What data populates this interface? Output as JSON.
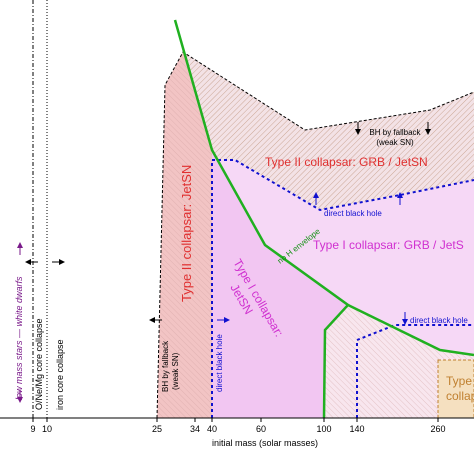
{
  "x_axis": {
    "label": "initial mass (solar masses)",
    "ticks": [
      "9",
      "10",
      "25",
      "34",
      "40",
      "60",
      "100",
      "140",
      "260"
    ]
  },
  "labels": {
    "white_dwarfs": "low mass stars — white dwarfs",
    "onemg": "O/Ne/Mg core collapse",
    "iron": "iron core collapse",
    "fallback_left": [
      "BH by fallback",
      "(weak SN)"
    ],
    "type2_jetsn": "Type II collapsar: JetSN",
    "dbh_left": "direct black hole",
    "type1_jetsn": [
      "Type I collapsar:",
      "JetSN"
    ],
    "no_h": "no H envelope",
    "fallback_right": [
      "BH by fallback",
      "(weak SN)"
    ],
    "type2_grb": "Type II collapsar: GRB / JetSN",
    "dbh_mid": "direct black hole",
    "type1_grb": "Type I collapsar: GRB / JetS",
    "dbh_right": "direct black hole",
    "type3": [
      "Type",
      "collaps"
    ]
  }
}
